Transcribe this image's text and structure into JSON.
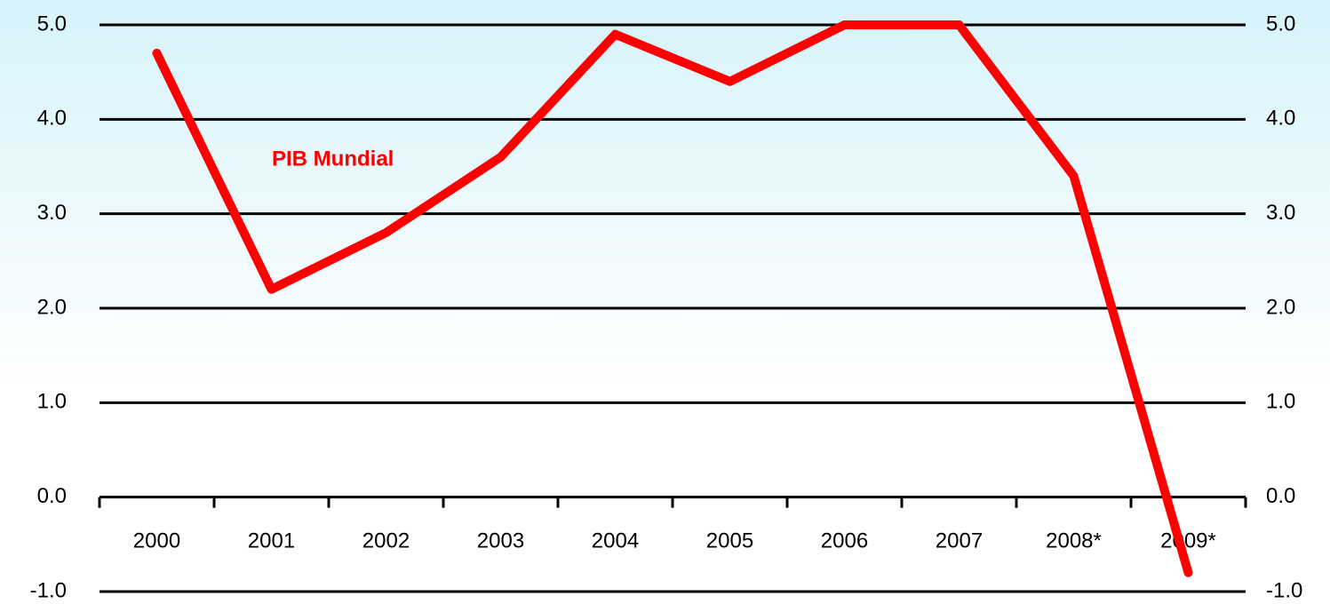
{
  "chart_data": {
    "type": "line",
    "categories": [
      "2000",
      "2001",
      "2002",
      "2003",
      "2004",
      "2005",
      "2006",
      "2007",
      "2008*",
      "2009*"
    ],
    "series": [
      {
        "name": "PIB Mundial",
        "color": "#ff0000",
        "values": [
          4.7,
          2.2,
          2.8,
          3.6,
          4.9,
          4.4,
          5.0,
          5.0,
          3.4,
          -0.8
        ]
      }
    ],
    "ylim": [
      -1,
      5
    ],
    "yticks": [
      {
        "value": -1,
        "label": "-1.0"
      },
      {
        "value": 0,
        "label": "0.0"
      },
      {
        "value": 1,
        "label": "1.0"
      },
      {
        "value": 2,
        "label": "2.0"
      },
      {
        "value": 3,
        "label": "3.0"
      },
      {
        "value": 4,
        "label": "4.0"
      },
      {
        "value": 5,
        "label": "5.0"
      }
    ],
    "y2lim": [
      -1,
      5
    ],
    "y2ticks": [
      {
        "value": -1,
        "label": "-1.0"
      },
      {
        "value": 0,
        "label": "0.0"
      },
      {
        "value": 1,
        "label": "1.0"
      },
      {
        "value": 2,
        "label": "2.0"
      },
      {
        "value": 3,
        "label": "3.0"
      },
      {
        "value": 4,
        "label": "4.0"
      },
      {
        "value": 5,
        "label": "5.0"
      }
    ],
    "grid": true
  }
}
